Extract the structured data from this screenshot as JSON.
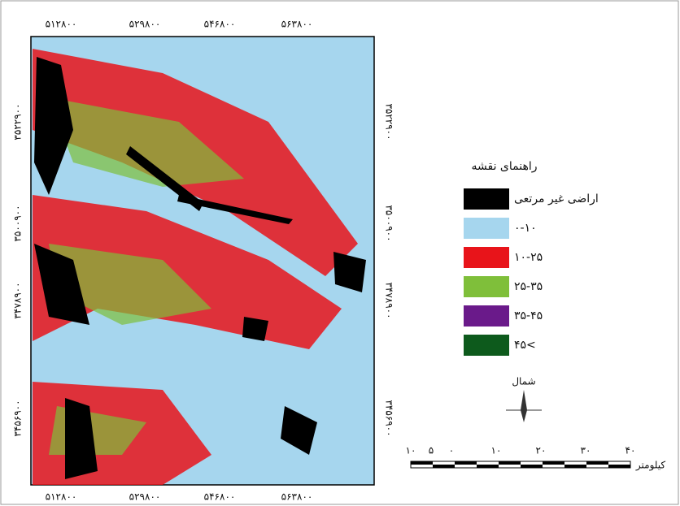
{
  "map": {
    "top_labels": [
      "۵۱۲۸۰۰",
      "۵۲۹۸۰۰",
      "۵۴۶۸۰۰",
      "۵۶۳۸۰۰"
    ],
    "bottom_labels": [
      "۵۱۲۸۰۰",
      "۵۲۹۸۰۰",
      "۵۴۶۸۰۰",
      "۵۶۳۸۰۰"
    ],
    "left_labels": [
      "۳۵۲۲۹۰۰",
      "۳۵۰۰۹۰۰",
      "۳۴۷۸۹۰۰",
      "۳۴۵۶۹۰۰"
    ],
    "right_labels": [
      "۳۵۲۲۹۰۰",
      "۳۵۰۰۹۰۰",
      "۳۴۷۸۹۰۰",
      "۳۴۵۶۹۰۰"
    ]
  },
  "legend": {
    "title": "راهنمای نقشه",
    "items": [
      {
        "label": "اراضی غیر مرتعی",
        "color": "#000000"
      },
      {
        "label": "۰-۱۰",
        "color": "#a6d6ee"
      },
      {
        "label": "۱۰-۲۵",
        "color": "#e8141a"
      },
      {
        "label": "۲۵-۳۵",
        "color": "#7fbf3a"
      },
      {
        "label": "۳۵-۴۵",
        "color": "#6a1a8a"
      },
      {
        "label": "۴۵<",
        "color": "#0d5a1c"
      }
    ]
  },
  "north": "شمال",
  "scale": {
    "labels": [
      "۱۰",
      "۵",
      "۰",
      "۱۰",
      "۲۰",
      "۳۰",
      "۴۰"
    ],
    "unit": "کیلومتر"
  }
}
